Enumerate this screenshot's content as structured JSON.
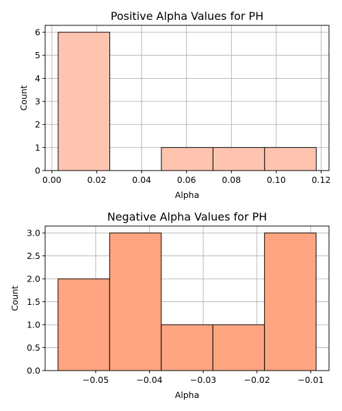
{
  "chart_data": [
    {
      "type": "bar",
      "title": "Positive Alpha Values for PH",
      "xlabel": "Alpha",
      "ylabel": "Count",
      "bins": [
        {
          "start": 0.0028,
          "end": 0.0258,
          "count": 6
        },
        {
          "start": 0.0258,
          "end": 0.0488,
          "count": 0
        },
        {
          "start": 0.0488,
          "end": 0.0718,
          "count": 1
        },
        {
          "start": 0.0718,
          "end": 0.0948,
          "count": 1
        },
        {
          "start": 0.0948,
          "end": 0.1178,
          "count": 1
        }
      ],
      "xlim": [
        -0.003,
        0.1235
      ],
      "ylim": [
        0,
        6.3
      ],
      "xticks": [
        0.0,
        0.02,
        0.04,
        0.06,
        0.08,
        0.1,
        0.12
      ],
      "xtick_labels": [
        "0.00",
        "0.02",
        "0.04",
        "0.06",
        "0.08",
        "0.10",
        "0.12"
      ],
      "yticks": [
        0,
        1,
        2,
        3,
        4,
        5,
        6
      ],
      "ytick_labels": [
        "0",
        "1",
        "2",
        "3",
        "4",
        "5",
        "6"
      ],
      "grid": true,
      "color": "#ffc4af"
    },
    {
      "type": "bar",
      "title": "Negative Alpha Values for PH",
      "xlabel": "Alpha",
      "ylabel": "Count",
      "bins": [
        {
          "start": -0.057,
          "end": -0.0474,
          "count": 2
        },
        {
          "start": -0.0474,
          "end": -0.0378,
          "count": 3
        },
        {
          "start": -0.0378,
          "end": -0.0282,
          "count": 1
        },
        {
          "start": -0.0282,
          "end": -0.0186,
          "count": 1
        },
        {
          "start": -0.0186,
          "end": -0.009,
          "count": 3
        }
      ],
      "xlim": [
        -0.0594,
        -0.0066
      ],
      "ylim": [
        0,
        3.15
      ],
      "xticks": [
        -0.05,
        -0.04,
        -0.03,
        -0.02,
        -0.01
      ],
      "xtick_labels": [
        "−0.05",
        "−0.04",
        "−0.03",
        "−0.02",
        "−0.01"
      ],
      "yticks": [
        0.0,
        0.5,
        1.0,
        1.5,
        2.0,
        2.5,
        3.0
      ],
      "ytick_labels": [
        "0.0",
        "0.5",
        "1.0",
        "1.5",
        "2.0",
        "2.5",
        "3.0"
      ],
      "grid": true,
      "color": "#ffa581"
    }
  ]
}
